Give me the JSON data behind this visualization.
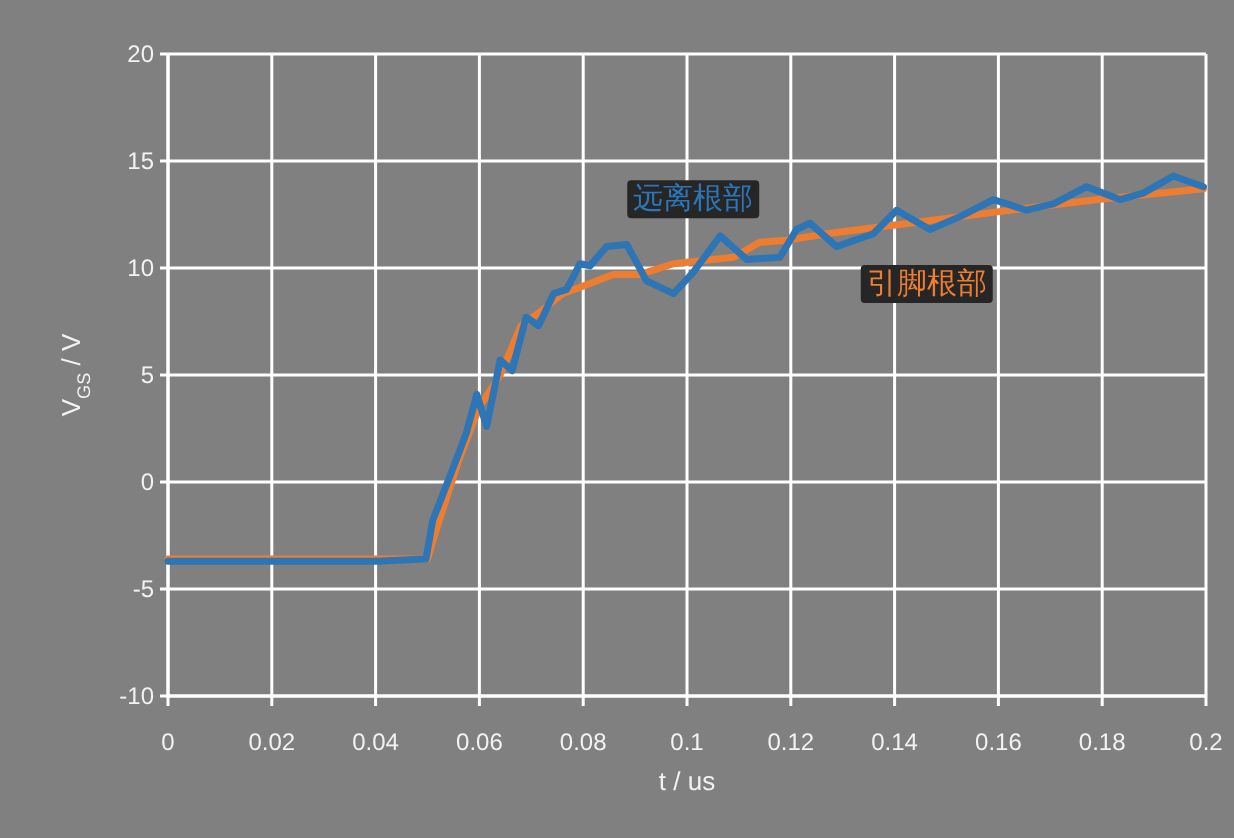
{
  "chart_data": {
    "type": "line",
    "xlabel": "t / us",
    "ylabel": "V$_{GS}$ / V",
    "xlim": [
      0,
      0.2
    ],
    "xticks": [
      0,
      0.02,
      0.04,
      0.06,
      0.08,
      0.1,
      0.12,
      0.14,
      0.16,
      0.18,
      0.2
    ],
    "ylim": [
      -10,
      20
    ],
    "yticks": [
      -10,
      -5,
      0,
      5,
      10,
      15,
      20
    ],
    "grid": true,
    "legend": false,
    "marker": "none",
    "line_style": "solid",
    "series": [
      {
        "name": "引脚根部",
        "color": "#ed7d31",
        "x": [
          0,
          0.02,
          0.04,
          0.05,
          0.052,
          0.056,
          0.06,
          0.064,
          0.068,
          0.072,
          0.076,
          0.0794,
          0.0858,
          0.091,
          0.0974,
          0.109,
          0.114,
          0.1192,
          0.1269,
          0.1462,
          0.159,
          0.1792,
          0.1995
        ],
        "values": [
          -3.6,
          -3.6,
          -3.6,
          -3.6,
          -2,
          1,
          3.5,
          5,
          7.3,
          8,
          8.8,
          9.1,
          9.7,
          9.7,
          10.2,
          10.5,
          11.2,
          11.3,
          11.6,
          12.2,
          12.6,
          13.2,
          13.7
        ]
      },
      {
        "name": "远离根部",
        "color": "#2e75b6",
        "x": [
          0,
          0.02,
          0.04,
          0.0497,
          0.051,
          0.055,
          0.0575,
          0.0595,
          0.0614,
          0.064,
          0.0663,
          0.069,
          0.0714,
          0.0743,
          0.0768,
          0.0794,
          0.0813,
          0.0845,
          0.0884,
          0.0922,
          0.0974,
          0.1012,
          0.1064,
          0.1115,
          0.1179,
          0.1211,
          0.1237,
          0.1288,
          0.1359,
          0.1404,
          0.1468,
          0.1526,
          0.159,
          0.1654,
          0.1706,
          0.177,
          0.1834,
          0.1879,
          0.1937,
          0.1995
        ],
        "values": [
          -3.7,
          -3.7,
          -3.7,
          -3.6,
          -1.8,
          0.7,
          2.3,
          4.1,
          2.6,
          5.7,
          5.2,
          7.7,
          7.3,
          8.8,
          9.0,
          10.2,
          10.1,
          11.0,
          11.1,
          9.4,
          8.8,
          9.8,
          11.5,
          10.4,
          10.5,
          11.8,
          12.1,
          11.0,
          11.6,
          12.7,
          11.8,
          12.4,
          13.2,
          12.7,
          13.0,
          13.8,
          13.2,
          13.5,
          14.3,
          13.8
        ]
      }
    ]
  }
}
